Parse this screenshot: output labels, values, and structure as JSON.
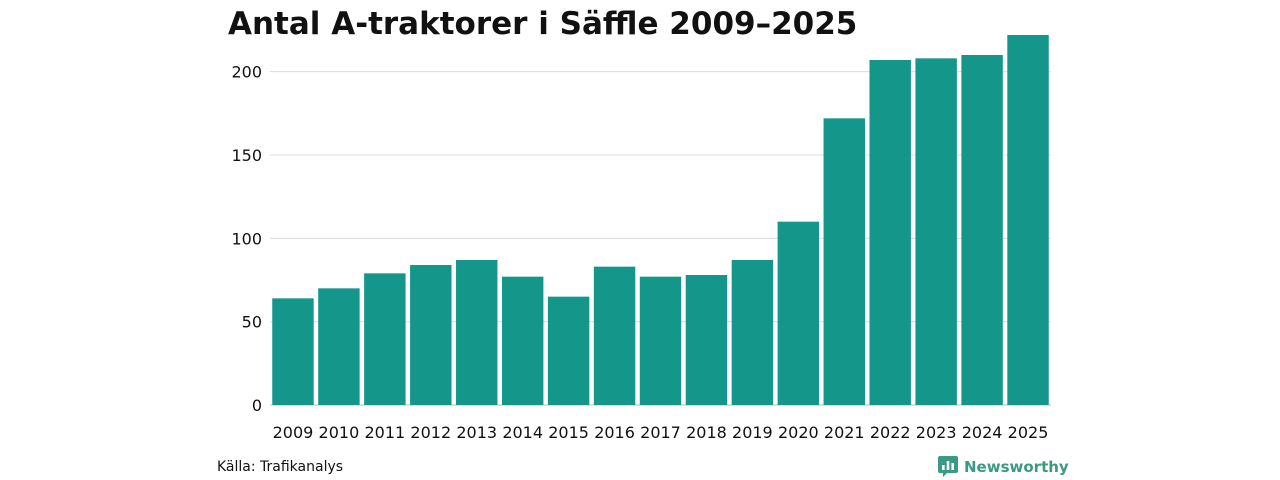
{
  "chart_data": {
    "type": "bar",
    "title": "Antal A-traktorer i Säffle 2009–2025",
    "categories": [
      "2009",
      "2010",
      "2011",
      "2012",
      "2013",
      "2014",
      "2015",
      "2016",
      "2017",
      "2018",
      "2019",
      "2020",
      "2021",
      "2022",
      "2023",
      "2024",
      "2025"
    ],
    "values": [
      64,
      70,
      79,
      84,
      87,
      77,
      65,
      83,
      77,
      78,
      87,
      110,
      172,
      207,
      208,
      210,
      222
    ],
    "xlabel": "",
    "ylabel": "",
    "ylim": [
      0,
      225
    ],
    "yticks": [
      0,
      50,
      100,
      150,
      200
    ],
    "grid": true,
    "bar_color": "#15968a"
  },
  "footer": {
    "source": "Källa: Trafikanalys",
    "brand": "Newsworthy",
    "brand_color": "#3a9a84"
  }
}
